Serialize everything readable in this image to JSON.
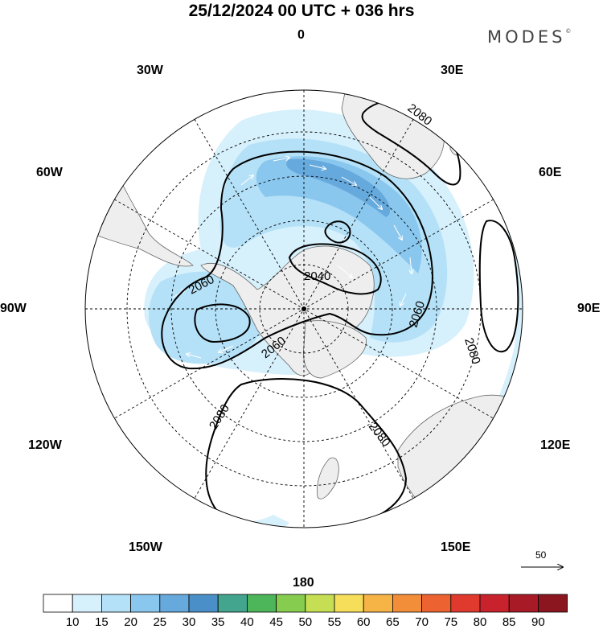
{
  "header": {
    "title": "25/12/2024  00 UTC  + 036 hrs",
    "brand": "MODES",
    "brand_mark": "©"
  },
  "map": {
    "projection": "polar stereographic (south pole centered)",
    "background_color": "#ffffff",
    "land_color": "#eeeeee",
    "ocean_color": "#ffffff",
    "meridian_labels": {
      "lon_0": "0",
      "lon_30e": "30E",
      "lon_60e": "60E",
      "lon_90e": "90E",
      "lon_120e": "120E",
      "lon_150e": "150E",
      "lon_180": "180",
      "lon_150w": "150W",
      "lon_120w": "120W",
      "lon_90w": "90W",
      "lon_60w": "60W",
      "lon_30w": "30W"
    },
    "contour_labels": {
      "c2040": "2040",
      "c2060_a": "2060",
      "c2060_b": "2060",
      "c2060_c": "2060",
      "c2080_a": "2080",
      "c2080_b": "2080",
      "c2080_c": "2080",
      "c2080_d": "2080"
    },
    "shading_field": "wind speed",
    "contour_field": "geopotential height"
  },
  "vector_key": {
    "value": "50"
  },
  "colorbar": {
    "labels": [
      "10",
      "15",
      "20",
      "25",
      "30",
      "35",
      "40",
      "45",
      "50",
      "55",
      "60",
      "65",
      "70",
      "75",
      "80",
      "85",
      "90"
    ],
    "colors": [
      "#ffffff",
      "#d6f0fc",
      "#b4e1f7",
      "#8ac7ee",
      "#66a9dd",
      "#4a8fc8",
      "#43a58d",
      "#4eb65a",
      "#86cc4f",
      "#c6de54",
      "#f7de5a",
      "#f6b446",
      "#f28e39",
      "#ec6331",
      "#e03a2e",
      "#c8232d",
      "#a81a26",
      "#8b1620"
    ]
  }
}
